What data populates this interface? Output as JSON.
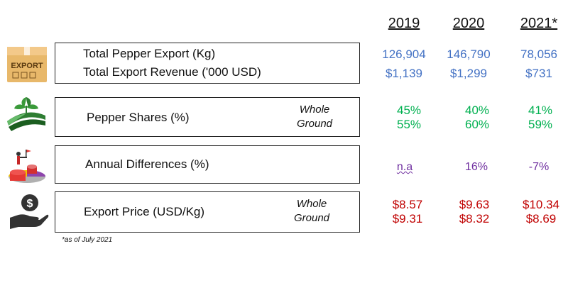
{
  "years": [
    "2019",
    "2020",
    "2021*"
  ],
  "rows": {
    "export": {
      "label1": "Total Pepper Export (Kg)",
      "label2": "Total Export Revenue ('000 USD)",
      "icon_text": "EXPORT",
      "values1": [
        "126,904",
        "146,790",
        "78,056"
      ],
      "values2": [
        "$1,139",
        "$1,299",
        "$731"
      ],
      "color": "#4472C4"
    },
    "shares": {
      "label": "Pepper Shares (%)",
      "sub1": "Whole",
      "sub2": "Ground",
      "values1": [
        "45%",
        "40%",
        "41%"
      ],
      "values2": [
        "55%",
        "60%",
        "59%"
      ],
      "color": "#00B050"
    },
    "diff": {
      "label": "Annual Differences (%)",
      "values": [
        "n.a",
        "16%",
        "-7%"
      ],
      "color": "#7030A0"
    },
    "price": {
      "label": "Export Price (USD/Kg)",
      "sub1": "Whole",
      "sub2": "Ground",
      "icon_text": "$",
      "values1": [
        "$8.57",
        "$9.63",
        "$10.34"
      ],
      "values2": [
        "$9.31",
        "$8.32",
        "$8.69"
      ],
      "color": "#C00000"
    }
  },
  "footnote": "*as of July 2021"
}
